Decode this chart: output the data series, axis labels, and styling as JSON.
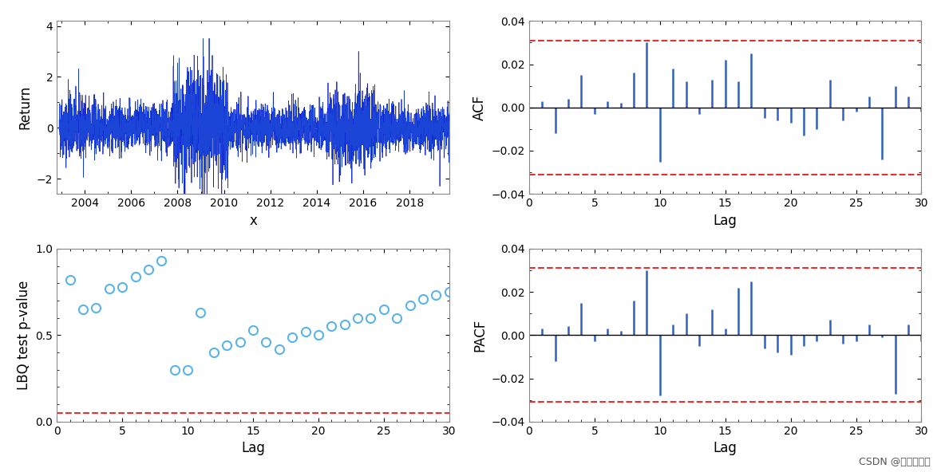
{
  "return_time_xlim": [
    2002.8,
    2019.7
  ],
  "return_ylim": [
    -2.6,
    4.2
  ],
  "return_yticks": [
    -2,
    0,
    2,
    4
  ],
  "return_xticks": [
    2004,
    2006,
    2008,
    2010,
    2012,
    2014,
    2016,
    2018
  ],
  "return_xlabel": "x",
  "return_ylabel": "Return",
  "acf_values": [
    0.003,
    -0.012,
    0.004,
    0.015,
    -0.003,
    0.003,
    0.002,
    0.016,
    0.03,
    -0.025,
    0.018,
    0.012,
    -0.003,
    0.013,
    0.022,
    0.012,
    0.025,
    -0.005,
    -0.006,
    -0.007,
    -0.013,
    -0.01,
    0.013,
    -0.006,
    -0.002,
    0.005,
    -0.024,
    0.01,
    0.005,
    -0.002
  ],
  "acf_conf": 0.031,
  "acf_xlim": [
    0,
    30
  ],
  "acf_ylim": [
    -0.04,
    0.04
  ],
  "acf_xlabel": "Lag",
  "acf_ylabel": "ACF",
  "lbq_values": [
    0.82,
    0.65,
    0.66,
    0.77,
    0.78,
    0.84,
    0.88,
    0.93,
    0.3,
    0.3,
    0.63,
    0.4,
    0.44,
    0.46,
    0.53,
    0.46,
    0.42,
    0.49,
    0.52,
    0.5,
    0.55,
    0.56,
    0.6,
    0.6,
    0.65,
    0.6,
    0.67,
    0.71,
    0.73,
    0.75
  ],
  "lbq_conf": 0.05,
  "lbq_xlim": [
    0,
    30
  ],
  "lbq_ylim": [
    0,
    1.0
  ],
  "lbq_yticks": [
    0,
    0.5,
    1
  ],
  "lbq_xlabel": "Lag",
  "lbq_ylabel": "LBQ test p-value",
  "pacf_values": [
    0.003,
    -0.012,
    0.004,
    0.015,
    -0.003,
    0.003,
    0.002,
    0.016,
    0.03,
    -0.028,
    0.005,
    0.01,
    -0.005,
    0.012,
    0.003,
    0.022,
    0.025,
    -0.006,
    -0.008,
    -0.009,
    -0.005,
    -0.003,
    0.007,
    -0.004,
    -0.003,
    0.005,
    -0.001,
    -0.027,
    0.005,
    -0.003
  ],
  "pacf_conf": 0.031,
  "pacf_xlim": [
    0,
    30
  ],
  "pacf_ylim": [
    -0.04,
    0.04
  ],
  "pacf_xlabel": "Lag",
  "pacf_ylabel": "PACF",
  "line_color_dark": "#0000CD",
  "line_color_light": "#4DC8E8",
  "bar_color": "#3060C0",
  "marker_color": "#5AB4E8",
  "conf_color": "#E83030",
  "background_color": "#FFFFFF",
  "watermark": "CSDN @拓端研究室"
}
